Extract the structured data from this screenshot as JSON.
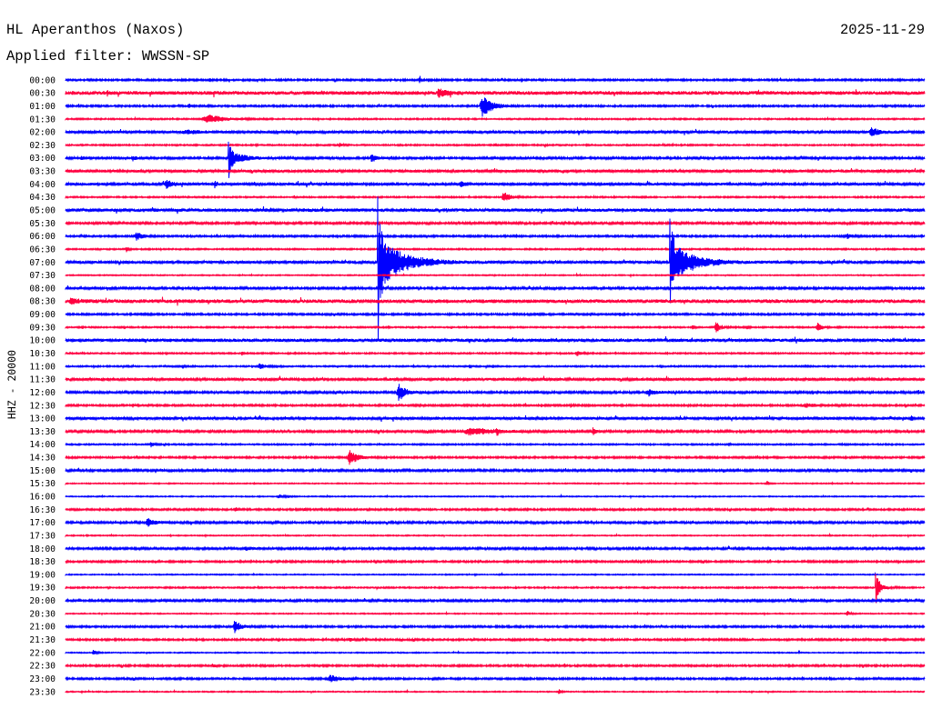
{
  "chart_data": {
    "type": "line",
    "title": "HL Aperanthos (Naxos)",
    "date": "2025-11-29",
    "subtitle": "Applied filter: WWSSN-SP",
    "ylabel": "HHZ - 20000",
    "rows": [
      {
        "label": "00:00",
        "color": "#0000ff",
        "noise": 1400,
        "events": [
          {
            "time": "00:05:01",
            "amplitude": 2800,
            "duration": 6
          },
          {
            "time": "00:12:20",
            "amplitude": 9800,
            "duration": 3
          },
          {
            "time": "00:12:39",
            "amplitude": 4200,
            "duration": 4
          },
          {
            "time": "00:23:46",
            "amplitude": 2800,
            "duration": 6
          }
        ]
      },
      {
        "label": "00:30",
        "color": "#ff0040",
        "noise": 2800,
        "events": [
          {
            "time": "00:31:26",
            "amplitude": 4200,
            "duration": 5
          },
          {
            "time": "00:42:58",
            "amplitude": 7000,
            "duration": 38
          }
        ]
      },
      {
        "label": "01:00",
        "color": "#0000ff",
        "noise": 1400,
        "events": [
          {
            "time": "01:04:17",
            "amplitude": 4200,
            "duration": 10
          },
          {
            "time": "01:14:28",
            "amplitude": 16800,
            "duration": 48
          }
        ]
      },
      {
        "label": "01:30",
        "color": "#ff0040",
        "noise": 1100,
        "events": [
          {
            "time": "01:34:46",
            "amplitude": 7000,
            "duration": 88
          }
        ]
      },
      {
        "label": "02:00",
        "color": "#0000ff",
        "noise": 2100,
        "events": [
          {
            "time": "02:04:04",
            "amplitude": 2800,
            "duration": 67
          },
          {
            "time": "02:28:04",
            "amplitude": 7000,
            "duration": 38
          }
        ]
      },
      {
        "label": "02:30",
        "color": "#ff0040",
        "noise": 1100,
        "events": [
          {
            "time": "02:39:32",
            "amplitude": 4200,
            "duration": 12
          },
          {
            "time": "02:44:58",
            "amplitude": 2800,
            "duration": 5
          },
          {
            "time": "02:46:43",
            "amplitude": 2800,
            "duration": 5
          }
        ]
      },
      {
        "label": "03:00",
        "color": "#0000ff",
        "noise": 1700,
        "events": [
          {
            "time": "03:00:32",
            "amplitude": 2800,
            "duration": 8
          },
          {
            "time": "03:02:19",
            "amplitude": 4200,
            "duration": 15
          },
          {
            "time": "03:05:41",
            "amplitude": 9800,
            "peak_up": 25100,
            "peak_down": 30700,
            "duration": 67
          },
          {
            "time": "03:10:39",
            "amplitude": 8400,
            "duration": 20
          }
        ]
      },
      {
        "label": "03:30",
        "color": "#ff0040",
        "noise": 2100,
        "events": []
      },
      {
        "label": "04:00",
        "color": "#0000ff",
        "noise": 2100,
        "events": [
          {
            "time": "04:03:26",
            "amplitude": 5600,
            "duration": 40
          },
          {
            "time": "04:05:11",
            "amplitude": 7000,
            "duration": 8
          },
          {
            "time": "04:13:46",
            "amplitude": 4200,
            "duration": 25
          }
        ]
      },
      {
        "label": "04:30",
        "color": "#ff0040",
        "noise": 1100,
        "events": [
          {
            "time": "04:45:15",
            "amplitude": 9800,
            "duration": 30
          }
        ]
      },
      {
        "label": "05:00",
        "color": "#0000ff",
        "noise": 2500,
        "events": []
      },
      {
        "label": "05:30",
        "color": "#ff0040",
        "noise": 1700,
        "events": []
      },
      {
        "label": "06:00",
        "color": "#0000ff",
        "noise": 1400,
        "events": [
          {
            "time": "06:02:25",
            "amplitude": 7000,
            "duration": 30
          },
          {
            "time": "06:27:16",
            "amplitude": 4200,
            "duration": 20
          }
        ]
      },
      {
        "label": "06:30",
        "color": "#ff0040",
        "noise": 1100,
        "events": [
          {
            "time": "06:32:06",
            "amplitude": 4200,
            "duration": 10
          }
        ]
      },
      {
        "label": "07:00",
        "color": "#0000ff",
        "noise": 2100,
        "events": [
          {
            "time": "07:10:54",
            "amplitude": 35000,
            "peak_up": 100600,
            "peak_down": 118700,
            "duration": 115
          },
          {
            "time": "07:21:06",
            "amplitude": 28000,
            "peak_up": 67000,
            "peak_down": 62900,
            "duration": 105
          }
        ]
      },
      {
        "label": "07:30",
        "color": "#ff0040",
        "noise": 840,
        "events": []
      },
      {
        "label": "08:00",
        "color": "#0000ff",
        "noise": 1700,
        "events": []
      },
      {
        "label": "08:30",
        "color": "#ff0040",
        "noise": 2800,
        "events": [
          {
            "time": "08:30:08",
            "amplitude": 5600,
            "duration": 30
          }
        ]
      },
      {
        "label": "09:00",
        "color": "#0000ff",
        "noise": 1400,
        "events": [
          {
            "time": "09:02:38",
            "amplitude": 2800,
            "duration": 10
          },
          {
            "time": "09:16:24",
            "amplitude": 2800,
            "duration": 8
          },
          {
            "time": "09:18:18",
            "amplitude": 2800,
            "duration": 8
          },
          {
            "time": "09:19:19",
            "amplitude": 2800,
            "duration": 8
          }
        ]
      },
      {
        "label": "09:30",
        "color": "#ff0040",
        "noise": 1100,
        "events": [
          {
            "time": "09:51:52",
            "amplitude": 2800,
            "duration": 10
          },
          {
            "time": "09:52:40",
            "amplitude": 8400,
            "duration": 25
          },
          {
            "time": "09:53:46",
            "amplitude": 2800,
            "duration": 10
          },
          {
            "time": "09:56:13",
            "amplitude": 7000,
            "duration": 25
          }
        ]
      },
      {
        "label": "10:00",
        "color": "#0000ff",
        "noise": 2500,
        "events": []
      },
      {
        "label": "10:30",
        "color": "#ff0040",
        "noise": 1100,
        "events": [
          {
            "time": "10:36:08",
            "amplitude": 2800,
            "duration": 8
          },
          {
            "time": "10:47:48",
            "amplitude": 4200,
            "duration": 25
          }
        ]
      },
      {
        "label": "11:00",
        "color": "#0000ff",
        "noise": 1100,
        "events": [
          {
            "time": "11:04:04",
            "amplitude": 2800,
            "duration": 8
          },
          {
            "time": "11:06:42",
            "amplitude": 4200,
            "duration": 35
          },
          {
            "time": "11:14:05",
            "amplitude": 2800,
            "duration": 6
          }
        ]
      },
      {
        "label": "11:30",
        "color": "#ff0040",
        "noise": 2100,
        "events": []
      },
      {
        "label": "12:00",
        "color": "#0000ff",
        "noise": 1700,
        "events": [
          {
            "time": "12:11:34",
            "amplitude": 16800,
            "duration": 30
          },
          {
            "time": "12:20:17",
            "amplitude": 4200,
            "duration": 50
          },
          {
            "time": "12:29:45",
            "amplitude": 4200,
            "duration": 8
          }
        ]
      },
      {
        "label": "12:30",
        "color": "#ff0040",
        "noise": 1400,
        "events": [
          {
            "time": "12:32:19",
            "amplitude": 2800,
            "duration": 6
          },
          {
            "time": "12:47:36",
            "amplitude": 4200,
            "duration": 10
          },
          {
            "time": "12:55:41",
            "amplitude": 2800,
            "duration": 80
          }
        ]
      },
      {
        "label": "13:00",
        "color": "#0000ff",
        "noise": 2100,
        "events": [
          {
            "time": "13:29:30",
            "amplitude": 4200,
            "duration": 8
          }
        ]
      },
      {
        "label": "13:30",
        "color": "#ff0040",
        "noise": 1700,
        "events": [
          {
            "time": "13:43:55",
            "amplitude": 5600,
            "duration": 133
          },
          {
            "time": "13:45:02",
            "amplitude": 8400,
            "duration": 6
          },
          {
            "time": "13:48:24",
            "amplitude": 7000,
            "duration": 10
          }
        ]
      },
      {
        "label": "14:00",
        "color": "#0000ff",
        "noise": 1100,
        "events": [
          {
            "time": "14:02:57",
            "amplitude": 4200,
            "duration": 15
          },
          {
            "time": "14:08:31",
            "amplitude": 2800,
            "duration": 6
          },
          {
            "time": "14:23:08",
            "amplitude": 2800,
            "duration": 6
          }
        ]
      },
      {
        "label": "14:30",
        "color": "#ff0040",
        "noise": 1400,
        "events": [
          {
            "time": "14:39:51",
            "amplitude": 14000,
            "duration": 35
          }
        ]
      },
      {
        "label": "15:00",
        "color": "#0000ff",
        "noise": 1700,
        "events": []
      },
      {
        "label": "15:30",
        "color": "#ff0040",
        "noise": 840,
        "events": [
          {
            "time": "15:54:28",
            "amplitude": 4200,
            "duration": 10
          }
        ]
      },
      {
        "label": "16:00",
        "color": "#0000ff",
        "noise": 840,
        "events": [
          {
            "time": "16:07:24",
            "amplitude": 2800,
            "duration": 30
          }
        ]
      },
      {
        "label": "16:30",
        "color": "#ff0040",
        "noise": 1400,
        "events": [
          {
            "time": "16:35:55",
            "amplitude": 2800,
            "duration": 6
          },
          {
            "time": "16:38:18",
            "amplitude": 2800,
            "duration": 6
          }
        ]
      },
      {
        "label": "17:00",
        "color": "#0000ff",
        "noise": 1700,
        "events": [
          {
            "time": "17:02:48",
            "amplitude": 7000,
            "duration": 35
          }
        ]
      },
      {
        "label": "17:30",
        "color": "#ff0040",
        "noise": 840,
        "events": []
      },
      {
        "label": "18:00",
        "color": "#0000ff",
        "noise": 1700,
        "events": [
          {
            "time": "18:06:14",
            "amplitude": 2800,
            "duration": 30
          }
        ]
      },
      {
        "label": "18:30",
        "color": "#ff0040",
        "noise": 1400,
        "events": []
      },
      {
        "label": "19:00",
        "color": "#0000ff",
        "noise": 840,
        "events": []
      },
      {
        "label": "19:30",
        "color": "#ff0040",
        "noise": 1100,
        "events": [
          {
            "time": "19:58:17",
            "amplitude": 7000,
            "peak_up": 21000,
            "peak_down": 23700,
            "duration": 40
          }
        ]
      },
      {
        "label": "20:00",
        "color": "#0000ff",
        "noise": 1700,
        "events": []
      },
      {
        "label": "20:30",
        "color": "#ff0040",
        "noise": 840,
        "events": [
          {
            "time": "20:57:16",
            "amplitude": 4200,
            "duration": 15
          }
        ]
      },
      {
        "label": "21:00",
        "color": "#0000ff",
        "noise": 1400,
        "events": [
          {
            "time": "21:05:51",
            "amplitude": 9800,
            "duration": 30
          }
        ]
      },
      {
        "label": "21:30",
        "color": "#ff0040",
        "noise": 1400,
        "events": [
          {
            "time": "21:39:53",
            "amplitude": 2800,
            "duration": 20
          }
        ]
      },
      {
        "label": "22:00",
        "color": "#0000ff",
        "noise": 840,
        "events": [
          {
            "time": "22:00:57",
            "amplitude": 5600,
            "duration": 12
          }
        ]
      },
      {
        "label": "22:30",
        "color": "#ff0040",
        "noise": 1400,
        "events": [
          {
            "time": "22:35:07",
            "amplitude": 4200,
            "duration": 10
          }
        ]
      },
      {
        "label": "23:00",
        "color": "#0000ff",
        "noise": 1400,
        "events": [
          {
            "time": "23:09:09",
            "amplitude": 5600,
            "duration": 50
          }
        ]
      },
      {
        "label": "23:30",
        "color": "#ff0040",
        "noise": 840,
        "events": [
          {
            "time": "23:47:12",
            "amplitude": 4200,
            "duration": 10
          }
        ]
      }
    ]
  }
}
